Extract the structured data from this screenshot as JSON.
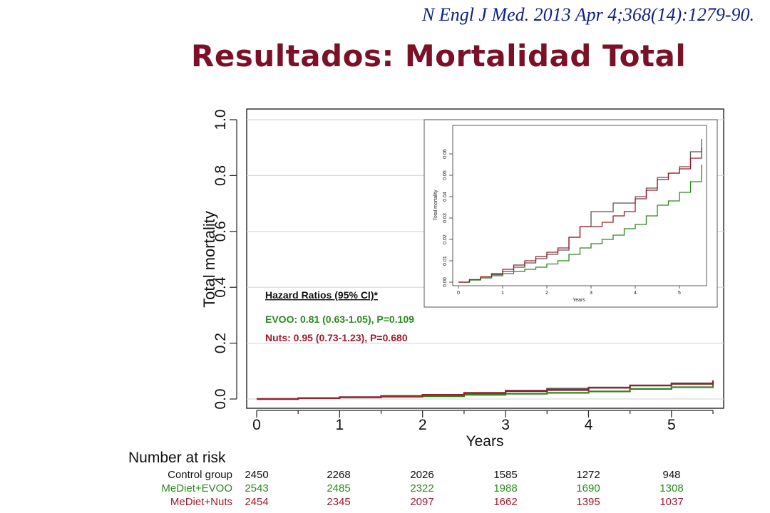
{
  "header": {
    "citation": "N Engl J Med. 2013 Apr 4;368(14):1279-90.",
    "title": "Resultados: Mortalidad Total"
  },
  "colors": {
    "title": "#7b1126",
    "citation": "#0f1f8a",
    "control": "#555555",
    "evoo": "#2a8a1e",
    "nuts": "#a11a2c",
    "grid": "#d9d9d9"
  },
  "chart_data": [
    {
      "type": "line",
      "xlabel": "Years",
      "ylabel": "Total mortality",
      "xlim": [
        0,
        5.5
      ],
      "ylim": [
        0,
        1.0
      ],
      "x_ticks": [
        "0",
        "1",
        "2",
        "3",
        "4",
        "5"
      ],
      "y_ticks": [
        "0.0",
        "0.2",
        "0.4",
        "0.6",
        "0.8",
        "1.0"
      ],
      "grid": "horizontal",
      "x": [
        0,
        0.5,
        1,
        1.5,
        2,
        2.5,
        3,
        3.5,
        4,
        4.5,
        5,
        5.5
      ],
      "series": [
        {
          "key": "control",
          "values": [
            0,
            0.003,
            0.007,
            0.011,
            0.015,
            0.02,
            0.03,
            0.037,
            0.041,
            0.049,
            0.056,
            0.067
          ]
        },
        {
          "key": "evoo",
          "values": [
            0,
            0.003,
            0.006,
            0.008,
            0.01,
            0.015,
            0.019,
            0.022,
            0.027,
            0.036,
            0.042,
            0.055
          ]
        },
        {
          "key": "nuts",
          "values": [
            0,
            0.003,
            0.006,
            0.011,
            0.015,
            0.022,
            0.028,
            0.032,
            0.04,
            0.048,
            0.054,
            0.064
          ]
        }
      ],
      "annotation": {
        "heading": "Hazard Ratios (95% CI)*",
        "evoo": "EVOO: 0.81 (0.63-1.05), P=0.109",
        "nuts": "Nuts: 0.95 (0.73-1.23), P=0.680"
      },
      "risk_table": {
        "title": "Number at risk",
        "rows": [
          {
            "label": "Control group",
            "key": "control",
            "values": [
              "2450",
              "2268",
              "2026",
              "1585",
              "1272",
              "948"
            ]
          },
          {
            "label": "MeDiet+EVOO",
            "key": "evoo",
            "values": [
              "2543",
              "2485",
              "2322",
              "1988",
              "1690",
              "1308"
            ]
          },
          {
            "label": "MeDiet+Nuts",
            "key": "nuts",
            "values": [
              "2454",
              "2345",
              "2097",
              "1662",
              "1395",
              "1037"
            ]
          }
        ]
      }
    },
    {
      "type": "line",
      "xlabel": "Years",
      "ylabel": "Total mortality",
      "xlim": [
        0,
        5.5
      ],
      "ylim": [
        0,
        0.07
      ],
      "x_ticks": [
        "0",
        "1",
        "2",
        "3",
        "4",
        "5"
      ],
      "y_ticks": [
        "0.00",
        "0.01",
        "0.02",
        "0.03",
        "0.04",
        "0.05",
        "0.06"
      ],
      "grid": "none",
      "x": [
        0,
        0.25,
        0.5,
        0.75,
        1,
        1.25,
        1.5,
        1.75,
        2,
        2.25,
        2.5,
        2.75,
        3,
        3.25,
        3.5,
        3.75,
        4,
        4.25,
        4.5,
        4.75,
        5,
        5.25,
        5.5
      ],
      "series": [
        {
          "key": "control",
          "values": [
            0,
            0.001,
            0.002,
            0.0035,
            0.005,
            0.007,
            0.009,
            0.011,
            0.013,
            0.015,
            0.021,
            0.026,
            0.033,
            0.033,
            0.037,
            0.037,
            0.04,
            0.044,
            0.049,
            0.051,
            0.054,
            0.061,
            0.067
          ]
        },
        {
          "key": "evoo",
          "values": [
            0,
            0.001,
            0.002,
            0.003,
            0.004,
            0.005,
            0.006,
            0.007,
            0.0085,
            0.01,
            0.013,
            0.016,
            0.018,
            0.02,
            0.022,
            0.025,
            0.027,
            0.031,
            0.036,
            0.038,
            0.042,
            0.047,
            0.055
          ]
        },
        {
          "key": "nuts",
          "values": [
            0,
            0.0012,
            0.0025,
            0.004,
            0.006,
            0.008,
            0.01,
            0.012,
            0.014,
            0.016,
            0.021,
            0.026,
            0.026,
            0.028,
            0.031,
            0.033,
            0.039,
            0.043,
            0.048,
            0.051,
            0.053,
            0.058,
            0.063
          ]
        }
      ]
    }
  ]
}
